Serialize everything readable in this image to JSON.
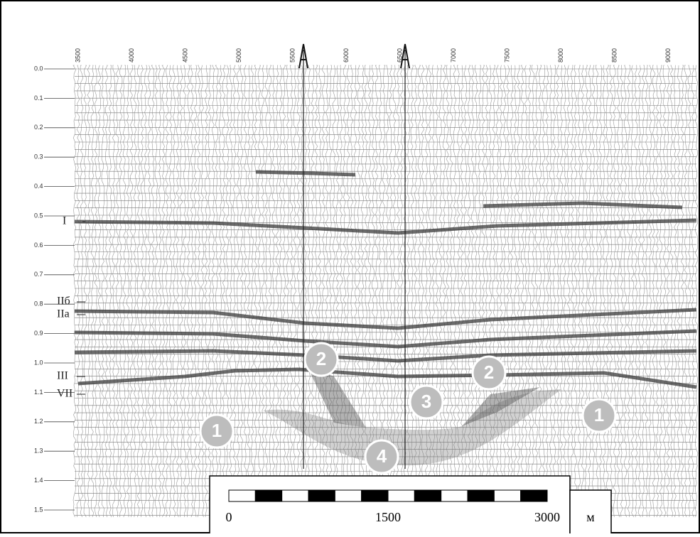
{
  "time_labels": [
    "0.0",
    "0.1",
    "0.2",
    "0.3",
    "0.4",
    "0.5",
    "0.6",
    "0.7",
    "0.8",
    "0.9",
    "1.0",
    "1.1",
    "1.2",
    "1.3",
    "1.4",
    "1.5"
  ],
  "trace_labels": [
    "3500",
    "4000",
    "4500",
    "5000",
    "5500",
    "6000",
    "6500",
    "7000",
    "7500",
    "8000",
    "8500",
    "9000"
  ],
  "horizons": [
    {
      "label": "I"
    },
    {
      "label": "IIб"
    },
    {
      "label": "IIа"
    },
    {
      "label": "III"
    },
    {
      "label": "VII"
    }
  ],
  "zones": [
    {
      "label": "1"
    },
    {
      "label": "1"
    },
    {
      "label": "2"
    },
    {
      "label": "2"
    },
    {
      "label": "3"
    },
    {
      "label": "4"
    }
  ],
  "scale_bar": {
    "labels": [
      "0",
      "1500",
      "3000"
    ],
    "unit": "м"
  }
}
